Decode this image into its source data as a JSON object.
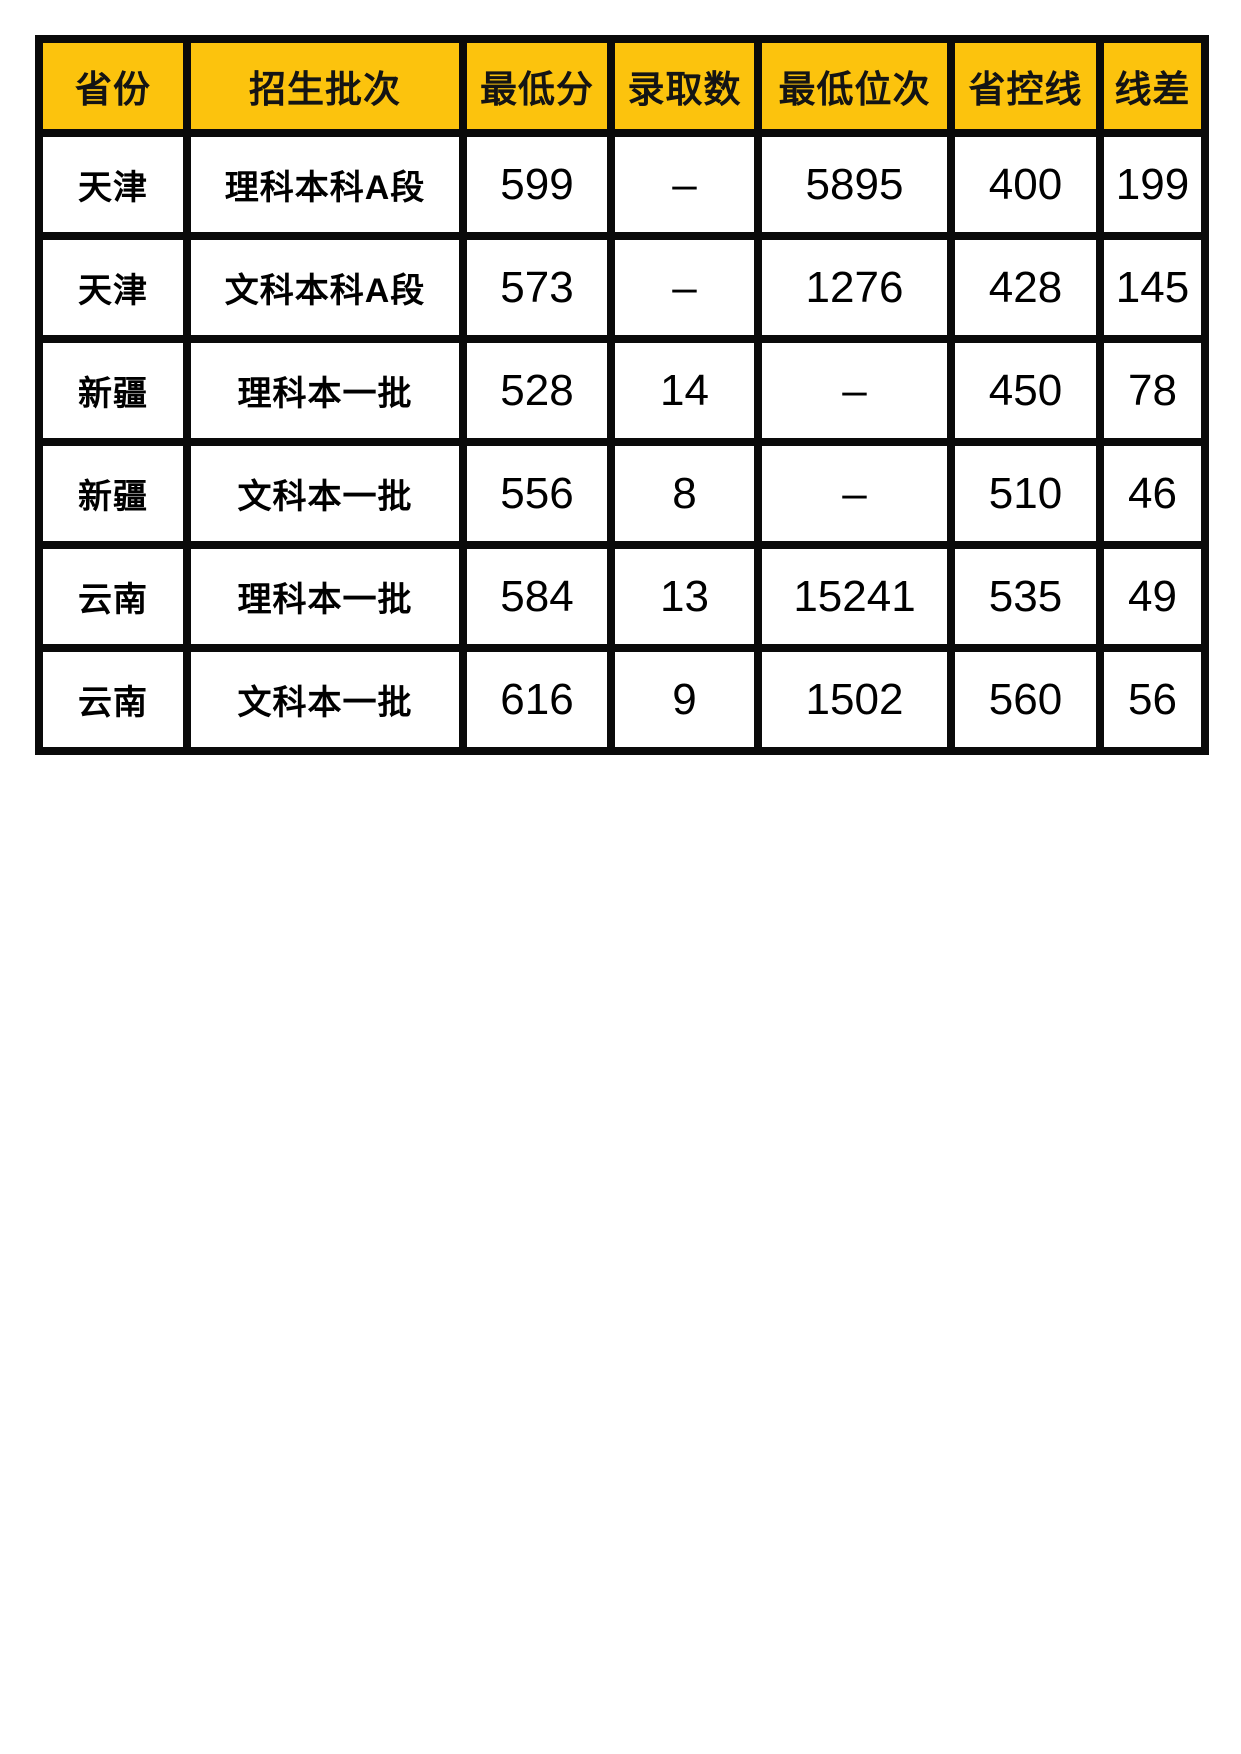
{
  "table": {
    "name": "admission-scores-table",
    "columns": [
      {
        "key": "province",
        "label": "省份"
      },
      {
        "key": "batch",
        "label": "招生批次"
      },
      {
        "key": "min_score",
        "label": "最低分"
      },
      {
        "key": "admit_count",
        "label": "录取数"
      },
      {
        "key": "min_rank",
        "label": "最低位次"
      },
      {
        "key": "control_line",
        "label": "省控线"
      },
      {
        "key": "line_diff",
        "label": "线差"
      }
    ],
    "rows": [
      [
        "天津",
        "理科本科A段",
        "599",
        "–",
        "5895",
        "400",
        "199"
      ],
      [
        "天津",
        "文科本科A段",
        "573",
        "–",
        "1276",
        "428",
        "145"
      ],
      [
        "新疆",
        "理科本一批",
        "528",
        "14",
        "–",
        "450",
        "78"
      ],
      [
        "新疆",
        "文科本一批",
        "556",
        "8",
        "–",
        "510",
        "46"
      ],
      [
        "云南",
        "理科本一批",
        "584",
        "13",
        "15241",
        "535",
        "49"
      ],
      [
        "云南",
        "文科本一批",
        "616",
        "9",
        "1502",
        "560",
        "56"
      ]
    ],
    "colors": {
      "header_bg": "#FCC30D",
      "header_text": "#141414",
      "border": "#0A0A0A",
      "cell_bg": "#FFFFFF",
      "cell_text": "#000000"
    }
  },
  "chart_data": {
    "type": "table",
    "title": "",
    "columns": [
      "省份",
      "招生批次",
      "最低分",
      "录取数",
      "最低位次",
      "省控线",
      "线差"
    ],
    "rows": [
      [
        "天津",
        "理科本科A段",
        599,
        null,
        5895,
        400,
        199
      ],
      [
        "天津",
        "文科本科A段",
        573,
        null,
        1276,
        428,
        145
      ],
      [
        "新疆",
        "理科本一批",
        528,
        14,
        null,
        450,
        78
      ],
      [
        "新疆",
        "文科本一批",
        556,
        8,
        null,
        510,
        46
      ],
      [
        "云南",
        "理科本一批",
        584,
        13,
        15241,
        535,
        49
      ],
      [
        "云南",
        "文科本一批",
        616,
        9,
        1502,
        560,
        56
      ]
    ],
    "missing_value_glyph": "–",
    "layout": {
      "header_fill": "#FCC30D",
      "grid": "heavy-black-borders"
    }
  }
}
